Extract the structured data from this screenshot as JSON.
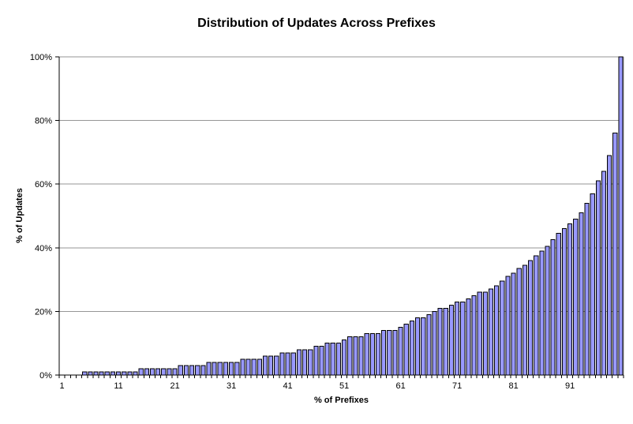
{
  "page": {
    "background": "#ffffff"
  },
  "chart_data": {
    "type": "bar",
    "title": "Distribution of Updates Across Prefixes",
    "xlabel": "% of Prefixes",
    "ylabel": "% of Updates",
    "ylim": [
      0,
      100
    ],
    "grid": "horizontal",
    "legend": "none",
    "x_range": [
      1,
      100
    ],
    "values": [
      0,
      0,
      0,
      0,
      1,
      1,
      1,
      1,
      1,
      1,
      1,
      1,
      1,
      1,
      2,
      2,
      2,
      2,
      2,
      2,
      2,
      3,
      3,
      3,
      3,
      3,
      4,
      4,
      4,
      4,
      4,
      4,
      5,
      5,
      5,
      5,
      6,
      6,
      6,
      7,
      7,
      7,
      8,
      8,
      8,
      9,
      9,
      10,
      10,
      10,
      11,
      12,
      12,
      12,
      13,
      13,
      13,
      14,
      14,
      14,
      15,
      16,
      17,
      18,
      18,
      19,
      20,
      21,
      21,
      22,
      23,
      23,
      24,
      25,
      26,
      26,
      27,
      28,
      29.5,
      31,
      32,
      33.5,
      34.5,
      36,
      37.5,
      39,
      40.5,
      42.5,
      44.5,
      46,
      47.5,
      49,
      51,
      54,
      57,
      61,
      64,
      69,
      76,
      100
    ],
    "x_tick_positions": [
      1,
      11,
      21,
      31,
      41,
      51,
      61,
      71,
      81,
      91
    ],
    "x_tick_labels": [
      "1",
      "11",
      "21",
      "31",
      "41",
      "51",
      "61",
      "71",
      "81",
      "91"
    ],
    "y_tick_values": [
      0,
      20,
      40,
      60,
      80,
      100
    ],
    "y_tick_labels": [
      "0%",
      "20%",
      "40%",
      "60%",
      "80%",
      "100%"
    ],
    "bar_color": "#9999FF",
    "bar_border_color": "#000000",
    "gridline_color": "#969696",
    "axis_color": "#000000",
    "text_color": "#000000"
  }
}
